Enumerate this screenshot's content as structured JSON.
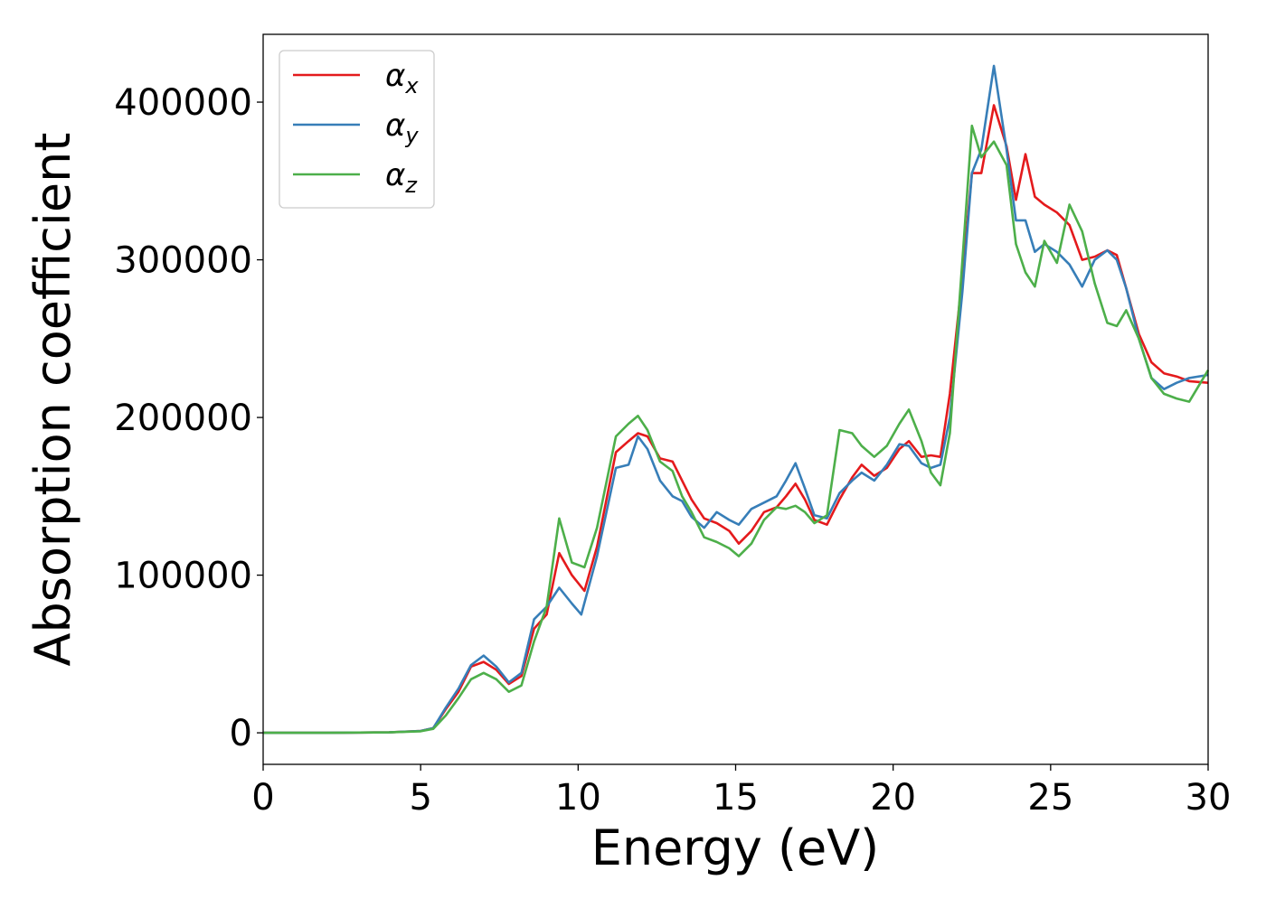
{
  "chart_data": {
    "type": "line",
    "xlabel": "Energy (eV)",
    "ylabel": "Absorption coefficient",
    "xlim": [
      0,
      30
    ],
    "ylim": [
      -20000,
      443000
    ],
    "xticks": [
      0,
      5,
      10,
      15,
      20,
      25,
      30
    ],
    "yticks": [
      0,
      100000,
      200000,
      300000,
      400000
    ],
    "legend_position": "top-left",
    "series": [
      {
        "name": "αx",
        "base": "α",
        "sub": "x",
        "color": "#e41a1c",
        "points": [
          [
            0,
            0
          ],
          [
            2,
            0
          ],
          [
            4,
            300
          ],
          [
            5,
            1200
          ],
          [
            5.4,
            3000
          ],
          [
            5.8,
            15000
          ],
          [
            6.2,
            26000
          ],
          [
            6.6,
            42000
          ],
          [
            7,
            45000
          ],
          [
            7.4,
            40000
          ],
          [
            7.8,
            31000
          ],
          [
            8.2,
            36000
          ],
          [
            8.6,
            66000
          ],
          [
            9,
            75000
          ],
          [
            9.4,
            114000
          ],
          [
            9.8,
            100000
          ],
          [
            10.2,
            90000
          ],
          [
            10.6,
            118000
          ],
          [
            11.2,
            178000
          ],
          [
            11.6,
            185000
          ],
          [
            11.9,
            190000
          ],
          [
            12.2,
            188000
          ],
          [
            12.6,
            174000
          ],
          [
            13,
            172000
          ],
          [
            13.3,
            160000
          ],
          [
            13.6,
            148000
          ],
          [
            14,
            136000
          ],
          [
            14.4,
            133000
          ],
          [
            14.8,
            128000
          ],
          [
            15.1,
            120000
          ],
          [
            15.5,
            128000
          ],
          [
            15.9,
            140000
          ],
          [
            16.3,
            143000
          ],
          [
            16.6,
            150000
          ],
          [
            16.9,
            158000
          ],
          [
            17.2,
            148000
          ],
          [
            17.5,
            135000
          ],
          [
            17.9,
            132000
          ],
          [
            18.3,
            148000
          ],
          [
            18.7,
            162000
          ],
          [
            19,
            170000
          ],
          [
            19.4,
            163000
          ],
          [
            19.8,
            168000
          ],
          [
            20.2,
            180000
          ],
          [
            20.5,
            185000
          ],
          [
            20.9,
            175000
          ],
          [
            21.2,
            176000
          ],
          [
            21.5,
            175000
          ],
          [
            21.8,
            215000
          ],
          [
            22.2,
            290000
          ],
          [
            22.5,
            355000
          ],
          [
            22.8,
            355000
          ],
          [
            23.2,
            398000
          ],
          [
            23.6,
            372000
          ],
          [
            23.9,
            338000
          ],
          [
            24.2,
            367000
          ],
          [
            24.5,
            340000
          ],
          [
            24.8,
            335000
          ],
          [
            25.2,
            330000
          ],
          [
            25.6,
            322000
          ],
          [
            26,
            300000
          ],
          [
            26.4,
            302000
          ],
          [
            26.8,
            306000
          ],
          [
            27.1,
            303000
          ],
          [
            27.4,
            282000
          ],
          [
            27.8,
            253000
          ],
          [
            28.2,
            235000
          ],
          [
            28.6,
            228000
          ],
          [
            29,
            226000
          ],
          [
            29.4,
            223000
          ],
          [
            30,
            222000
          ]
        ]
      },
      {
        "name": "αy",
        "base": "α",
        "sub": "y",
        "color": "#377eb8",
        "points": [
          [
            0,
            0
          ],
          [
            2,
            0
          ],
          [
            4,
            300
          ],
          [
            5,
            1200
          ],
          [
            5.4,
            3000
          ],
          [
            5.8,
            16000
          ],
          [
            6.2,
            28000
          ],
          [
            6.6,
            43000
          ],
          [
            7,
            49000
          ],
          [
            7.4,
            42000
          ],
          [
            7.8,
            32000
          ],
          [
            8.2,
            38000
          ],
          [
            8.6,
            72000
          ],
          [
            9,
            80000
          ],
          [
            9.4,
            92000
          ],
          [
            9.8,
            82000
          ],
          [
            10.1,
            75000
          ],
          [
            10.6,
            112000
          ],
          [
            11.2,
            168000
          ],
          [
            11.6,
            170000
          ],
          [
            11.9,
            188000
          ],
          [
            12.2,
            180000
          ],
          [
            12.6,
            160000
          ],
          [
            13,
            150000
          ],
          [
            13.3,
            147000
          ],
          [
            13.6,
            137000
          ],
          [
            14,
            130000
          ],
          [
            14.4,
            140000
          ],
          [
            14.8,
            135000
          ],
          [
            15.1,
            132000
          ],
          [
            15.5,
            142000
          ],
          [
            15.9,
            146000
          ],
          [
            16.3,
            150000
          ],
          [
            16.6,
            160000
          ],
          [
            16.9,
            171000
          ],
          [
            17.2,
            155000
          ],
          [
            17.5,
            138000
          ],
          [
            17.9,
            136000
          ],
          [
            18.3,
            152000
          ],
          [
            18.7,
            160000
          ],
          [
            19,
            165000
          ],
          [
            19.4,
            160000
          ],
          [
            19.8,
            170000
          ],
          [
            20.2,
            183000
          ],
          [
            20.5,
            182000
          ],
          [
            20.9,
            171000
          ],
          [
            21.2,
            168000
          ],
          [
            21.5,
            170000
          ],
          [
            21.8,
            200000
          ],
          [
            22.2,
            280000
          ],
          [
            22.5,
            355000
          ],
          [
            22.8,
            370000
          ],
          [
            23.2,
            423000
          ],
          [
            23.6,
            370000
          ],
          [
            23.9,
            325000
          ],
          [
            24.2,
            325000
          ],
          [
            24.5,
            305000
          ],
          [
            24.8,
            310000
          ],
          [
            25.2,
            305000
          ],
          [
            25.6,
            297000
          ],
          [
            26,
            283000
          ],
          [
            26.4,
            300000
          ],
          [
            26.8,
            306000
          ],
          [
            27.1,
            300000
          ],
          [
            27.4,
            282000
          ],
          [
            27.8,
            250000
          ],
          [
            28.2,
            225000
          ],
          [
            28.6,
            218000
          ],
          [
            29,
            222000
          ],
          [
            29.4,
            225000
          ],
          [
            30,
            227000
          ]
        ]
      },
      {
        "name": "αz",
        "base": "α",
        "sub": "z",
        "color": "#4daf4a",
        "points": [
          [
            0,
            0
          ],
          [
            2,
            0
          ],
          [
            4,
            300
          ],
          [
            5,
            1000
          ],
          [
            5.4,
            2500
          ],
          [
            5.8,
            11000
          ],
          [
            6.2,
            22000
          ],
          [
            6.6,
            34000
          ],
          [
            7,
            38000
          ],
          [
            7.4,
            34000
          ],
          [
            7.8,
            26000
          ],
          [
            8.2,
            30000
          ],
          [
            8.6,
            58000
          ],
          [
            9,
            80000
          ],
          [
            9.4,
            136000
          ],
          [
            9.8,
            108000
          ],
          [
            10.2,
            105000
          ],
          [
            10.6,
            130000
          ],
          [
            11.2,
            188000
          ],
          [
            11.6,
            196000
          ],
          [
            11.9,
            201000
          ],
          [
            12.2,
            192000
          ],
          [
            12.6,
            172000
          ],
          [
            13,
            166000
          ],
          [
            13.3,
            150000
          ],
          [
            13.6,
            140000
          ],
          [
            14,
            124000
          ],
          [
            14.4,
            121000
          ],
          [
            14.8,
            117000
          ],
          [
            15.1,
            112000
          ],
          [
            15.5,
            120000
          ],
          [
            15.9,
            135000
          ],
          [
            16.3,
            143000
          ],
          [
            16.6,
            142000
          ],
          [
            16.9,
            144000
          ],
          [
            17.2,
            140000
          ],
          [
            17.5,
            133000
          ],
          [
            17.9,
            138000
          ],
          [
            18.3,
            192000
          ],
          [
            18.7,
            190000
          ],
          [
            19,
            182000
          ],
          [
            19.4,
            175000
          ],
          [
            19.8,
            182000
          ],
          [
            20.2,
            196000
          ],
          [
            20.5,
            205000
          ],
          [
            20.9,
            185000
          ],
          [
            21.2,
            165000
          ],
          [
            21.5,
            157000
          ],
          [
            21.8,
            190000
          ],
          [
            22.2,
            300000
          ],
          [
            22.5,
            385000
          ],
          [
            22.8,
            365000
          ],
          [
            23.2,
            375000
          ],
          [
            23.6,
            360000
          ],
          [
            23.9,
            310000
          ],
          [
            24.2,
            292000
          ],
          [
            24.5,
            283000
          ],
          [
            24.8,
            312000
          ],
          [
            25.2,
            298000
          ],
          [
            25.6,
            335000
          ],
          [
            26,
            318000
          ],
          [
            26.4,
            285000
          ],
          [
            26.8,
            260000
          ],
          [
            27.1,
            258000
          ],
          [
            27.4,
            268000
          ],
          [
            27.8,
            250000
          ],
          [
            28.2,
            225000
          ],
          [
            28.6,
            215000
          ],
          [
            29,
            212000
          ],
          [
            29.4,
            210000
          ],
          [
            30,
            230000
          ]
        ]
      }
    ]
  }
}
